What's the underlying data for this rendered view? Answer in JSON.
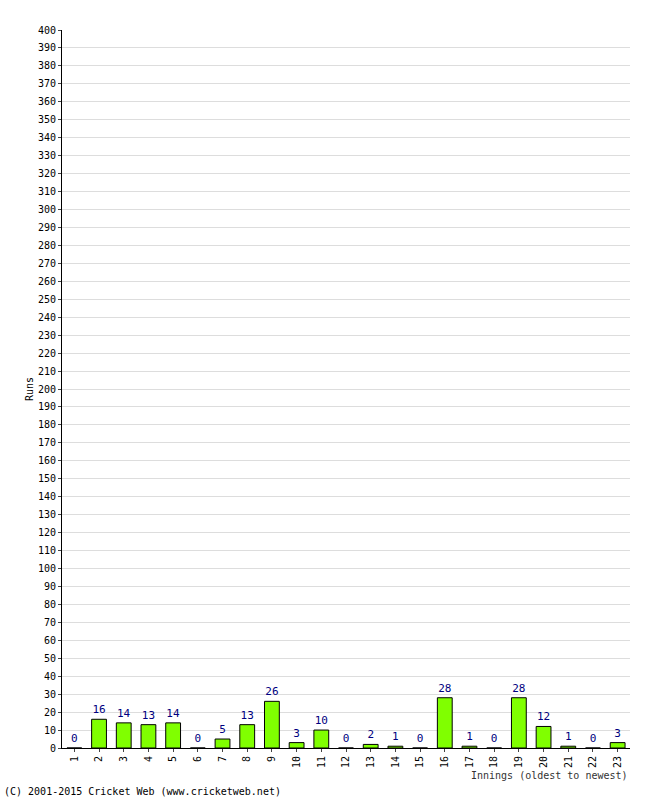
{
  "chart_data": {
    "type": "bar",
    "xlabel": "Innings (oldest to newest)",
    "ylabel": "Runs",
    "annotations": [
      "(C) 2001-2015 Cricket Web (www.cricketweb.net)"
    ],
    "categories": [
      "1",
      "2",
      "3",
      "4",
      "5",
      "6",
      "7",
      "8",
      "9",
      "10",
      "11",
      "12",
      "13",
      "14",
      "15",
      "16",
      "17",
      "18",
      "19",
      "20",
      "21",
      "22",
      "23"
    ],
    "values": [
      0,
      16,
      14,
      13,
      14,
      0,
      5,
      13,
      26,
      3,
      10,
      0,
      2,
      1,
      0,
      28,
      1,
      0,
      28,
      12,
      1,
      0,
      3
    ],
    "color": "#80ff00",
    "ylim": [
      0,
      400
    ],
    "yticks": [
      0,
      10,
      20,
      30,
      40,
      50,
      60,
      70,
      80,
      90,
      100,
      110,
      120,
      130,
      140,
      150,
      160,
      170,
      180,
      190,
      200,
      210,
      220,
      230,
      240,
      250,
      260,
      270,
      280,
      290,
      300,
      310,
      320,
      330,
      340,
      350,
      360,
      370,
      380,
      390,
      400
    ],
    "grid": true,
    "data_labels": true
  }
}
